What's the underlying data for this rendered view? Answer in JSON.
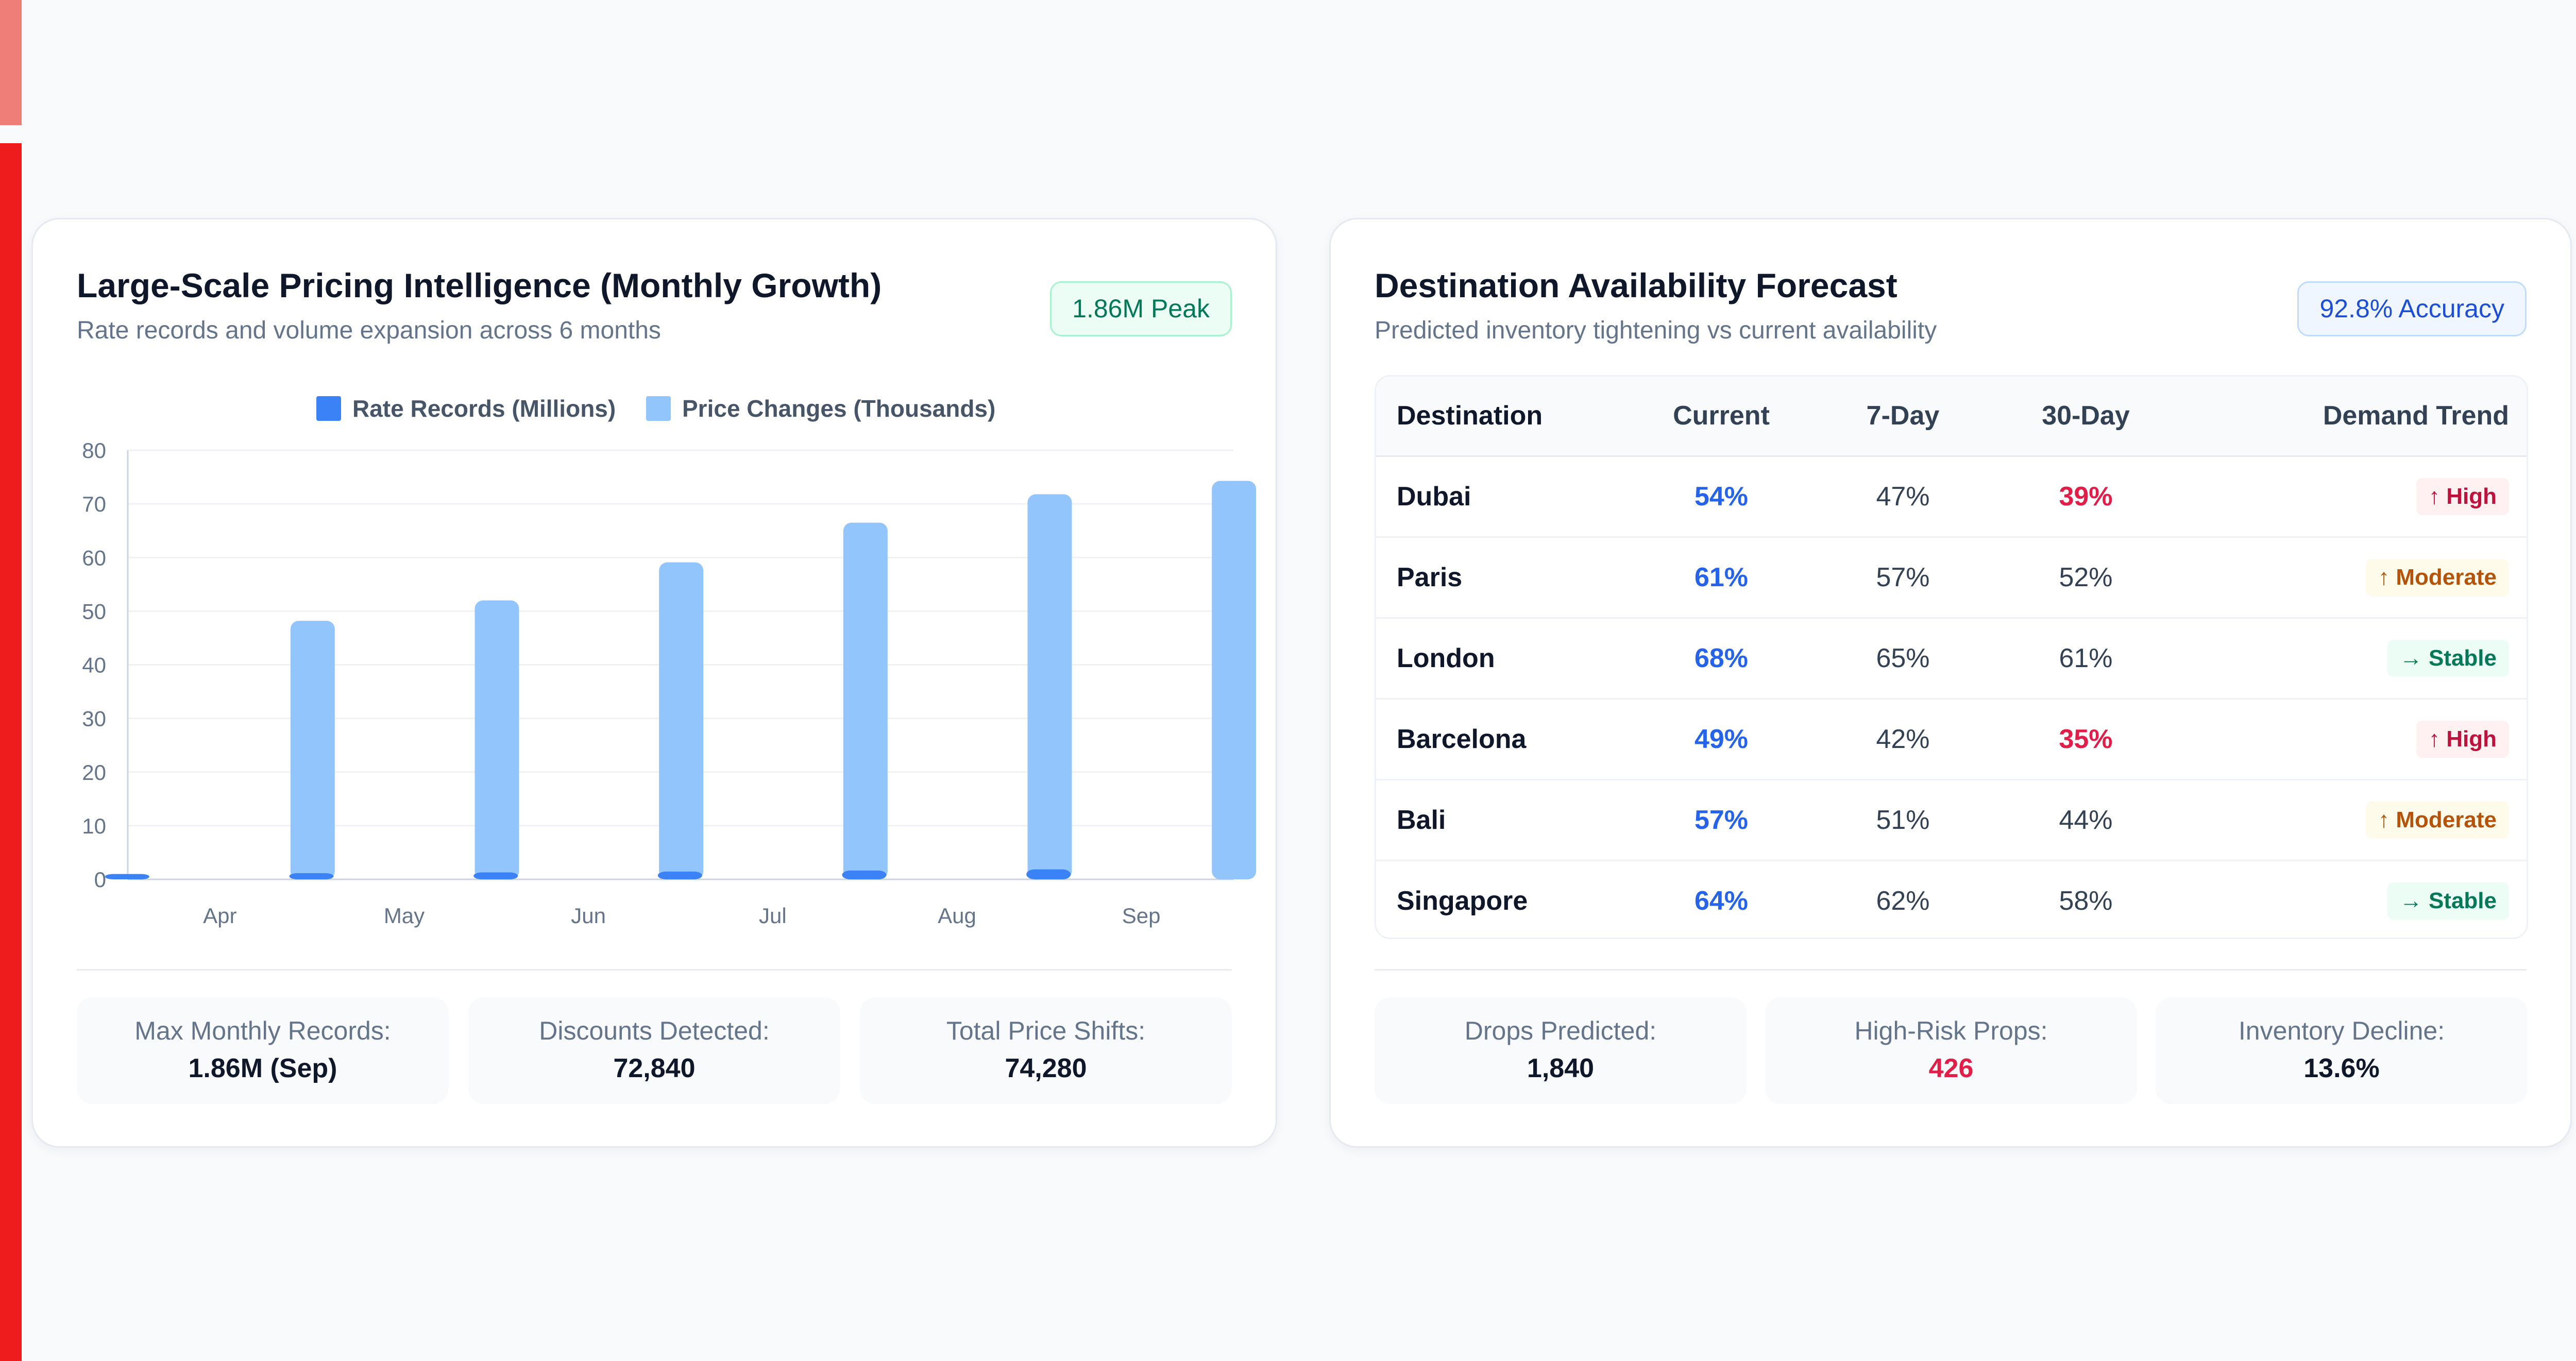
{
  "pricing_card": {
    "title": "Large-Scale Pricing Intelligence (Monthly Growth)",
    "subtitle": "Rate records and volume expansion across 6 months",
    "badge": "1.86M Peak",
    "stats": [
      {
        "label": "Max Monthly Records:",
        "value": "1.86M (Sep)"
      },
      {
        "label": "Discounts Detected:",
        "value": "72,840"
      },
      {
        "label": "Total Price Shifts:",
        "value": "74,280"
      }
    ]
  },
  "chart_data": {
    "type": "bar",
    "title": "",
    "xlabel": "",
    "ylabel": "",
    "categories": [
      "Apr",
      "May",
      "Jun",
      "Jul",
      "Aug",
      "Sep"
    ],
    "series": [
      {
        "name": "Rate Records (Millions)",
        "values": [
          1.0,
          1.15,
          1.3,
          1.45,
          1.65,
          1.86
        ],
        "color": "#3b82f6"
      },
      {
        "name": "Price Changes (Thousands)",
        "values": [
          48.2,
          52.0,
          59.1,
          66.5,
          71.8,
          74.28
        ],
        "color": "#93c5fd"
      }
    ],
    "ylim": [
      0,
      80
    ],
    "yticks": [
      0,
      10,
      20,
      30,
      40,
      50,
      60,
      70,
      80
    ],
    "grid": true,
    "legend_position": "top"
  },
  "forecast_card": {
    "title": "Destination Availability Forecast",
    "subtitle": "Predicted inventory tightening vs current availability",
    "badge": "92.8% Accuracy",
    "table": {
      "headers": [
        "Destination",
        "Current",
        "7-Day",
        "30-Day",
        "Demand Trend"
      ],
      "rows": [
        {
          "destination": "Dubai",
          "current": "54%",
          "day7": "47%",
          "day30": "39%",
          "trend": "↑ High",
          "level": "high"
        },
        {
          "destination": "Paris",
          "current": "61%",
          "day7": "57%",
          "day30": "52%",
          "trend": "↑ Moderate",
          "level": "moderate"
        },
        {
          "destination": "London",
          "current": "68%",
          "day7": "65%",
          "day30": "61%",
          "trend": "→ Stable",
          "level": "stable"
        },
        {
          "destination": "Barcelona",
          "current": "49%",
          "day7": "42%",
          "day30": "35%",
          "trend": "↑ High",
          "level": "high"
        },
        {
          "destination": "Bali",
          "current": "57%",
          "day7": "51%",
          "day30": "44%",
          "trend": "↑ Moderate",
          "level": "moderate"
        },
        {
          "destination": "Singapore",
          "current": "64%",
          "day7": "62%",
          "day30": "58%",
          "trend": "→ Stable",
          "level": "stable"
        }
      ]
    },
    "stats": [
      {
        "label": "Drops Predicted:",
        "value": "1,840"
      },
      {
        "label": "High-Risk Props:",
        "value": "426"
      },
      {
        "label": "Inventory Decline:",
        "value": "13.6%"
      }
    ]
  }
}
